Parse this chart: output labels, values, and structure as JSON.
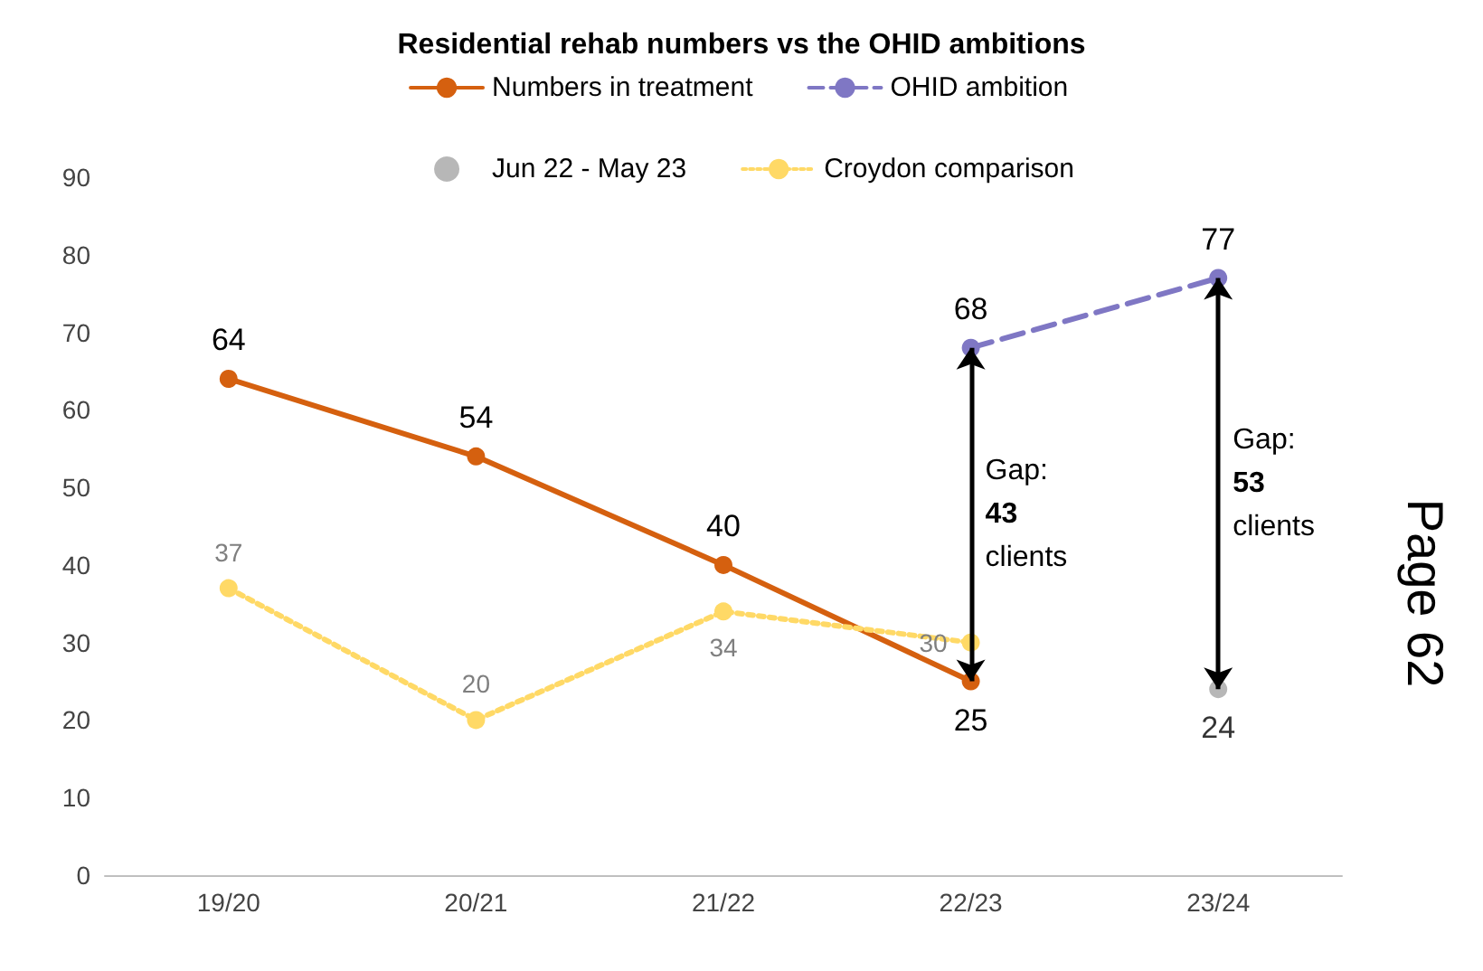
{
  "chart_data": {
    "type": "line",
    "title": "Residential rehab numbers vs the OHID ambitions",
    "categories": [
      "19/20",
      "20/21",
      "21/22",
      "22/23",
      "23/24"
    ],
    "series": [
      {
        "name": "Numbers in treatment",
        "color": "#d5600f",
        "values": [
          64,
          54,
          40,
          25,
          null
        ],
        "marker": "circle",
        "line_style": "solid"
      },
      {
        "name": "OHID ambition",
        "color": "#7f77c4",
        "values": [
          null,
          null,
          null,
          68,
          77
        ],
        "marker": "circle",
        "line_style": "dashed"
      },
      {
        "name": "Jun 22 - May 23",
        "type": "scatter",
        "color": "#a5a5a5",
        "values": [
          null,
          null,
          null,
          null,
          24
        ],
        "marker": "circle"
      },
      {
        "name": "Croydon comparison",
        "color": "#ffd966",
        "values": [
          37,
          20,
          34,
          30,
          null
        ],
        "marker": "circle",
        "line_style": "dotted"
      }
    ],
    "ylim": [
      0,
      90
    ],
    "yticks": [
      0,
      10,
      20,
      30,
      40,
      50,
      60,
      70,
      80,
      90
    ],
    "grid": false,
    "legend": "top",
    "data_labels": true,
    "annotations": [
      "Gap: 43 clients",
      "Gap: 53 clients",
      "Page 62"
    ]
  }
}
